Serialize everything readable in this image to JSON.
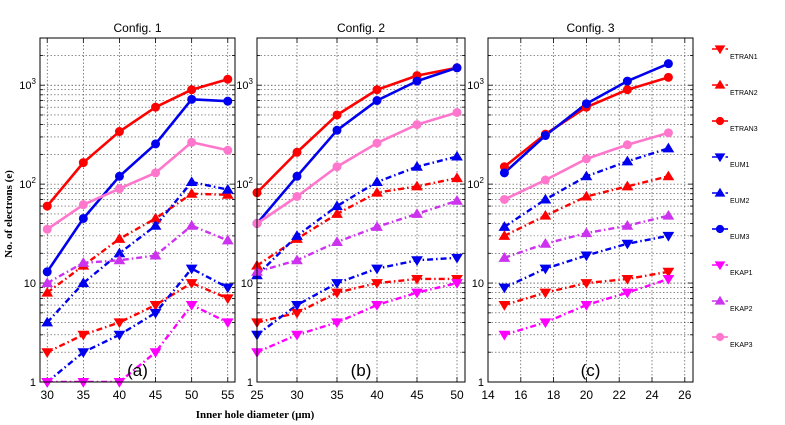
{
  "chart_data": {
    "type": "line",
    "ylabel": "No. of electrons (e)",
    "xlabel": "Inner hole diameter (μm)",
    "yscale": "log",
    "ylim": [
      1,
      3000
    ],
    "ytick_labels": [
      "1",
      "10",
      "10²",
      "10³"
    ],
    "series_styles": [
      {
        "name": "ETRAN1",
        "color": "#ff0000",
        "marker": "tri-down",
        "dash": "dashdot"
      },
      {
        "name": "ETRAN2",
        "color": "#ff0000",
        "marker": "tri-up",
        "dash": "dashdot"
      },
      {
        "name": "ETRAN3",
        "color": "#ff0000",
        "marker": "circle",
        "dash": "solid"
      },
      {
        "name": "EUM1",
        "color": "#0000ee",
        "marker": "tri-down",
        "dash": "dashdot"
      },
      {
        "name": "EUM2",
        "color": "#0000ee",
        "marker": "tri-up",
        "dash": "dashdot"
      },
      {
        "name": "EUM3",
        "color": "#0000ee",
        "marker": "circle",
        "dash": "solid"
      },
      {
        "name": "EKAP1",
        "color": "#ff00ff",
        "marker": "tri-down",
        "dash": "dashdot"
      },
      {
        "name": "EKAP2",
        "color": "#cc33ee",
        "marker": "tri-up",
        "dash": "dashdot"
      },
      {
        "name": "EKAP3",
        "color": "#ff77cc",
        "marker": "circle",
        "dash": "solid"
      }
    ],
    "panels": [
      {
        "title": "Config. 1",
        "label": "(a)",
        "xlim": [
          29,
          56
        ],
        "xticks": [
          30,
          35,
          40,
          45,
          50,
          55
        ],
        "x": [
          30,
          35,
          40,
          45,
          50,
          55
        ],
        "series": {
          "ETRAN1": [
            2,
            3,
            4,
            6,
            10,
            7
          ],
          "ETRAN2": [
            8,
            15,
            28,
            45,
            80,
            78
          ],
          "ETRAN3": [
            60,
            165,
            340,
            600,
            900,
            1150
          ],
          "EUM1": [
            1,
            2,
            3,
            5,
            14,
            9
          ],
          "EUM2": [
            4,
            10,
            20,
            38,
            105,
            88
          ],
          "EUM3": [
            13,
            45,
            120,
            255,
            720,
            690
          ],
          "EKAP1": [
            1,
            1,
            1,
            2,
            6,
            4
          ],
          "EKAP2": [
            10,
            16,
            17,
            19,
            38,
            27
          ],
          "EKAP3": [
            35,
            62,
            90,
            130,
            265,
            220
          ]
        }
      },
      {
        "title": "Config. 2",
        "label": "(b)",
        "xlim": [
          25,
          51
        ],
        "xticks": [
          25,
          30,
          35,
          40,
          45,
          50
        ],
        "x": [
          25,
          30,
          35,
          40,
          45,
          50
        ],
        "series": {
          "ETRAN1": [
            4,
            5,
            8,
            10,
            11,
            11
          ],
          "ETRAN2": [
            15,
            28,
            50,
            82,
            95,
            115
          ],
          "ETRAN3": [
            82,
            210,
            500,
            900,
            1250,
            1500
          ],
          "EUM1": [
            3,
            6,
            10,
            14,
            17,
            18
          ],
          "EUM2": [
            12,
            30,
            60,
            105,
            150,
            190
          ],
          "EUM3": [
            40,
            120,
            350,
            700,
            1100,
            1500
          ],
          "EKAP1": [
            2,
            3,
            4,
            6,
            8,
            10
          ],
          "EKAP2": [
            13,
            17,
            26,
            37,
            50,
            68
          ],
          "EKAP3": [
            40,
            75,
            150,
            260,
            400,
            530
          ]
        }
      },
      {
        "title": "Config. 3",
        "label": "(c)",
        "xlim": [
          14,
          26.5
        ],
        "xticks": [
          14,
          16,
          18,
          20,
          22,
          24,
          26
        ],
        "x": [
          15,
          17.5,
          20,
          22.5,
          25
        ],
        "series": {
          "ETRAN1": [
            6,
            8,
            10,
            11,
            13
          ],
          "ETRAN2": [
            30,
            48,
            75,
            95,
            120
          ],
          "ETRAN3": [
            150,
            320,
            600,
            900,
            1200
          ],
          "EUM1": [
            9,
            14,
            19,
            25,
            30
          ],
          "EUM2": [
            37,
            70,
            120,
            170,
            230
          ],
          "EUM3": [
            130,
            310,
            650,
            1100,
            1650
          ],
          "EKAP1": [
            3,
            4,
            6,
            8,
            11
          ],
          "EKAP2": [
            18,
            25,
            32,
            38,
            48
          ],
          "EKAP3": [
            70,
            110,
            180,
            250,
            330
          ]
        }
      }
    ]
  }
}
